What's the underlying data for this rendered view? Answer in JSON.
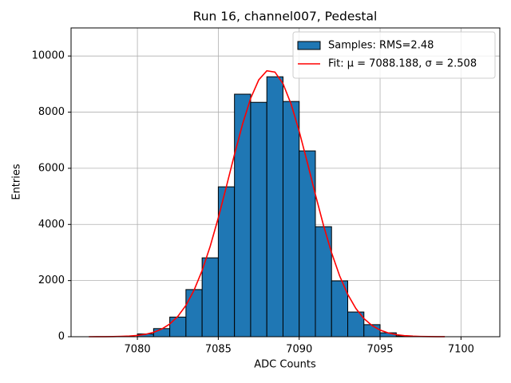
{
  "chart_data": {
    "type": "histogram",
    "title": "Run 16, channel007, Pedestal",
    "xlabel": "ADC Counts",
    "ylabel": "Entries",
    "xlim": [
      7075.9,
      7102.4
    ],
    "ylim": [
      0,
      11000
    ],
    "xticks": [
      7080,
      7085,
      7090,
      7095,
      7100
    ],
    "yticks": [
      0,
      2000,
      4000,
      6000,
      8000,
      10000
    ],
    "grid": true,
    "legend_loc": "upper right",
    "series": [
      {
        "type": "histogram",
        "name": "Samples: RMS=2.48",
        "color": "#1f77b4",
        "edgecolor": "#000000",
        "bins": [
          7080,
          7081,
          7082,
          7083,
          7084,
          7085,
          7086,
          7087,
          7088,
          7089,
          7090,
          7091,
          7092,
          7093,
          7094,
          7095,
          7096,
          7097
        ],
        "values": [
          100,
          290,
          700,
          1680,
          2810,
          5340,
          8640,
          8350,
          9260,
          8380,
          6620,
          3920,
          1990,
          880,
          430,
          140,
          30
        ]
      },
      {
        "type": "line",
        "name": "Fit: μ = 7088.188, σ = 2.508",
        "color": "#ff0000",
        "x": [
          7077,
          7077.5,
          7078,
          7078.5,
          7079,
          7079.5,
          7080,
          7080.5,
          7081,
          7081.5,
          7082,
          7082.5,
          7083,
          7083.5,
          7084,
          7084.5,
          7085,
          7085.5,
          7086,
          7086.5,
          7087,
          7087.5,
          7088,
          7088.5,
          7089,
          7089.5,
          7090,
          7090.5,
          7091,
          7091.5,
          7092,
          7092.5,
          7093,
          7093.5,
          7094,
          7094.5,
          7095,
          7095.5,
          7096,
          7096.5,
          7097,
          7097.5,
          7098,
          7098.5,
          7099
        ],
        "values": [
          0,
          1,
          2,
          5,
          12,
          24,
          46,
          86,
          156,
          271,
          453,
          726,
          1118,
          1656,
          2357,
          3222,
          4235,
          5349,
          6493,
          7574,
          8492,
          9149,
          9473,
          9427,
          9015,
          8285,
          7318,
          6212,
          5067,
          3972,
          2993,
          2167,
          1508,
          1008,
          648,
          400,
          237,
          135,
          74,
          39,
          20,
          10,
          4,
          2,
          1
        ]
      }
    ]
  }
}
